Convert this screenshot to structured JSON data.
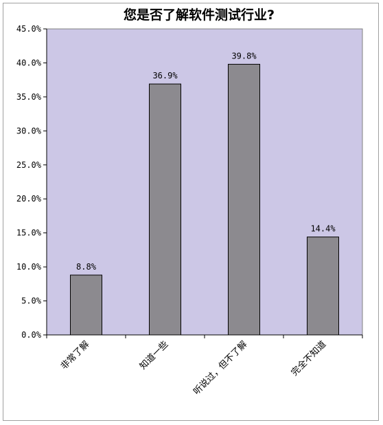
{
  "chart_data": {
    "type": "bar",
    "title": "您是否了解软件测试行业?",
    "categories": [
      "非常了解",
      "知道一些",
      "听说过，但不了解",
      "完全不知道"
    ],
    "values": [
      8.8,
      36.9,
      39.8,
      14.4
    ],
    "data_labels": [
      "8.8%",
      "36.9%",
      "39.8%",
      "14.4%"
    ],
    "y_ticks": [
      "0.0%",
      "5.0%",
      "10.0%",
      "15.0%",
      "20.0%",
      "25.0%",
      "30.0%",
      "35.0%",
      "40.0%",
      "45.0%"
    ],
    "ylim": [
      0,
      45
    ],
    "grid": false,
    "legend": "none",
    "colors": {
      "plot_background": "#ccc7e6",
      "bar_fill": "#8c8a8f",
      "bar_stroke": "#000000",
      "axis": "#000000"
    }
  }
}
